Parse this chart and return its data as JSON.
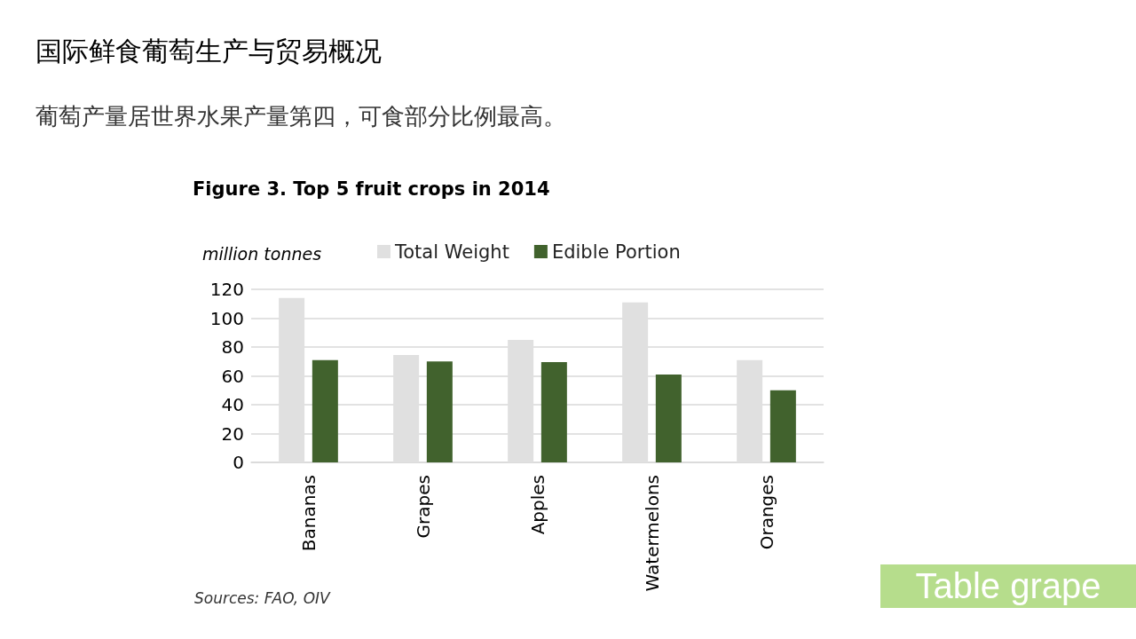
{
  "chart_data": {
    "type": "bar",
    "title": "国际鲜食葡萄生产与贸易概况",
    "subtitle": "葡萄产量居世界水果产量第四，可食部分比例最高。",
    "annotations": [
      "Figure 3. Top 5 fruit crops in 2014",
      "Sources: FAO, OIV",
      "Table grape"
    ],
    "ylabel": "million tonnes",
    "categories": [
      "Bananas",
      "Grapes",
      "Apples",
      "Watermelons",
      "Oranges"
    ],
    "series": [
      {
        "name": "Total Weight",
        "color": "#e0e0e0",
        "values": [
          114,
          74.5,
          85,
          111,
          71
        ]
      },
      {
        "name": "Edible Portion",
        "color": "#41622d",
        "values": [
          71,
          70,
          69.5,
          61,
          50
        ]
      }
    ],
    "ylim": [
      0,
      120
    ],
    "yticks": [
      0,
      20,
      40,
      60,
      80,
      100,
      120
    ],
    "grid": "y",
    "legend": "top"
  }
}
